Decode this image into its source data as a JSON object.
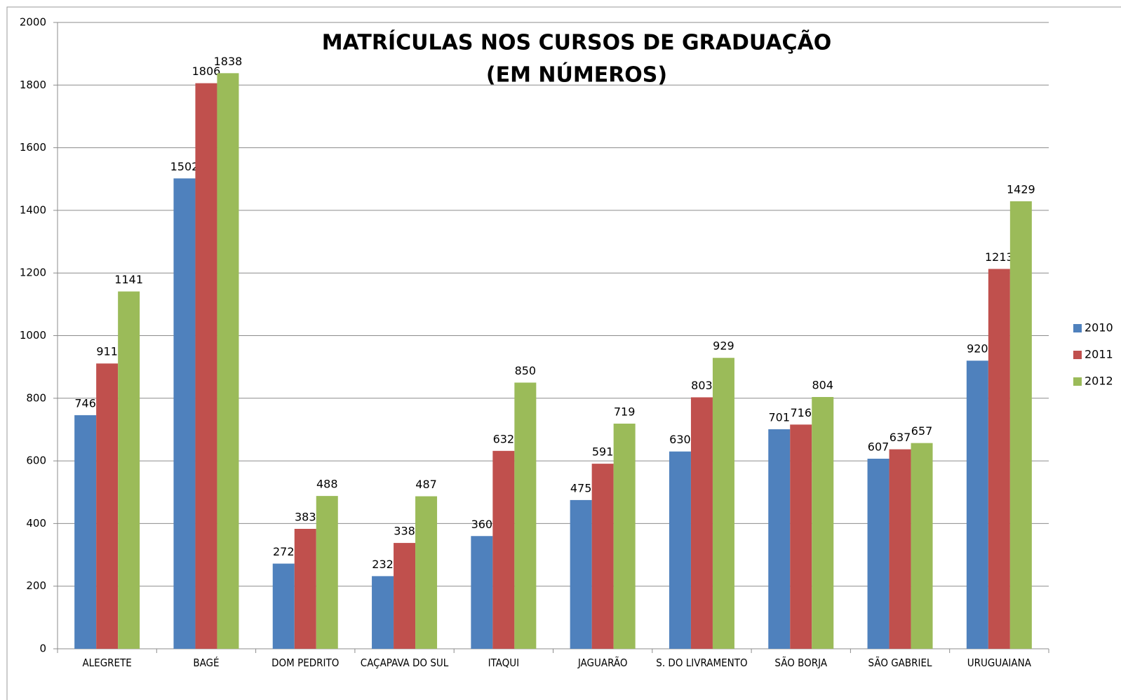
{
  "chart_data": {
    "type": "bar",
    "title": "MATRÍCULAS NOS CURSOS DE GRADUAÇÃO",
    "subtitle": "(EM NÚMEROS)",
    "categories": [
      "ALEGRETE",
      "BAGÉ",
      "DOM PEDRITO",
      "CAÇAPAVA DO SUL",
      "ITAQUI",
      "JAGUARÃO",
      "S. DO LIVRAMENTO",
      "SÃO BORJA",
      "SÃO GABRIEL",
      "URUGUAIANA"
    ],
    "series": [
      {
        "name": "2010",
        "color": "#4f81bd",
        "values": [
          746,
          1502,
          272,
          232,
          360,
          475,
          630,
          701,
          607,
          920
        ]
      },
      {
        "name": "2011",
        "color": "#c0504d",
        "values": [
          911,
          1806,
          383,
          338,
          632,
          591,
          803,
          716,
          637,
          1213
        ]
      },
      {
        "name": "2012",
        "color": "#9bbb59",
        "values": [
          1141,
          1838,
          488,
          487,
          850,
          719,
          929,
          804,
          657,
          1429
        ]
      }
    ],
    "ylim": [
      0,
      2000
    ],
    "yticks": [
      0,
      200,
      400,
      600,
      800,
      1000,
      1200,
      1400,
      1600,
      1800,
      2000
    ],
    "grid": true,
    "legend": "right"
  }
}
